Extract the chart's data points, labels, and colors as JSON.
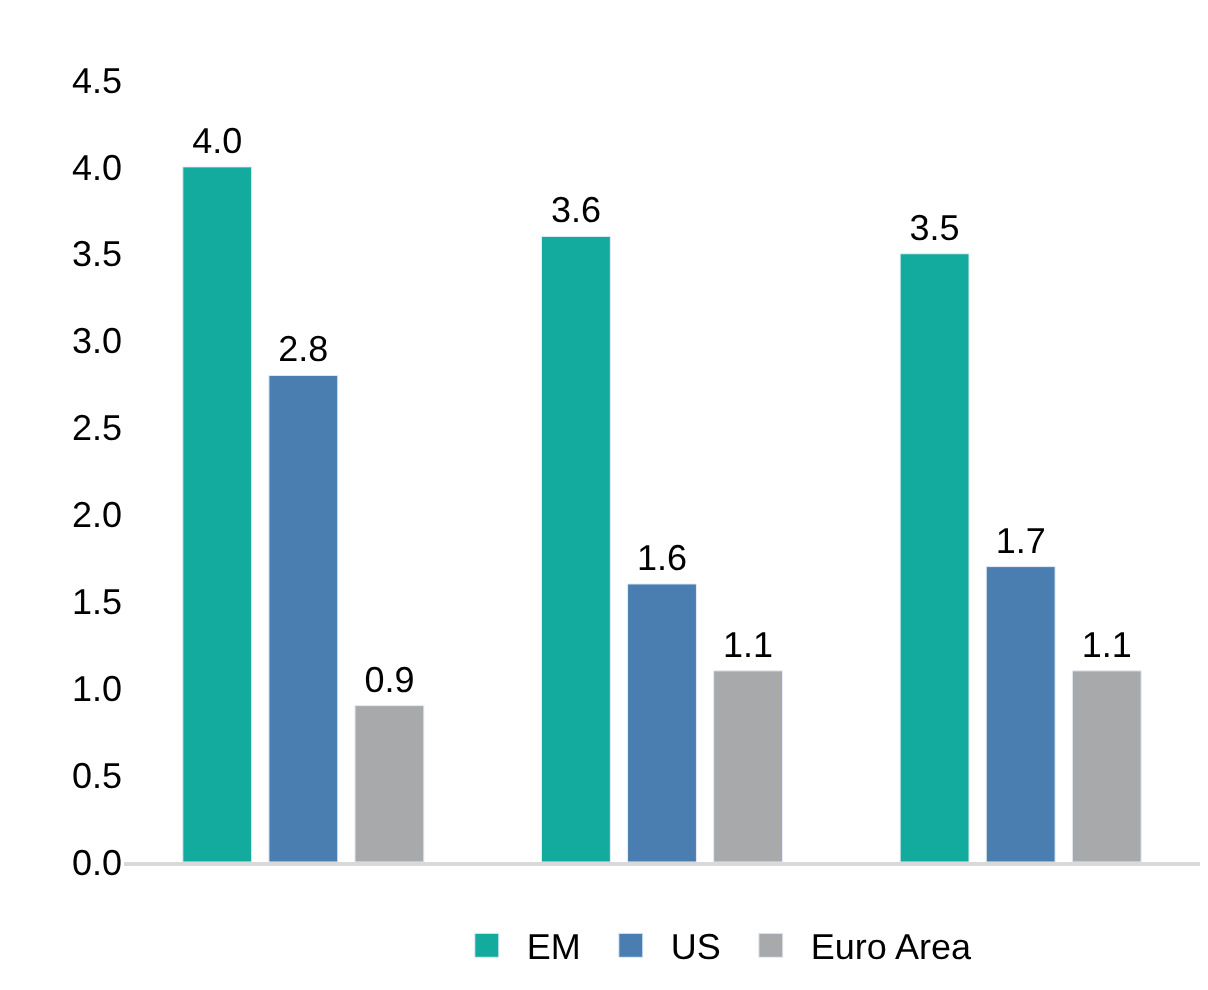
{
  "chart_data": {
    "type": "bar",
    "categories": [
      null,
      null,
      null
    ],
    "series": [
      {
        "name": "EM",
        "color": "#13ab9d",
        "values": [
          4.0,
          3.6,
          3.5
        ],
        "value_labels": [
          "4.0",
          "3.6",
          "3.5"
        ]
      },
      {
        "name": "US",
        "color": "#4a7eb0",
        "values": [
          2.8,
          1.6,
          1.7
        ],
        "value_labels": [
          "2.8",
          "1.6",
          "1.7"
        ]
      },
      {
        "name": "Euro Area",
        "color": "#a8a9ab",
        "values": [
          0.9,
          1.1,
          1.1
        ],
        "value_labels": [
          "0.9",
          "1.1",
          "1.1"
        ]
      }
    ],
    "ylim": [
      0,
      4.5
    ],
    "yticks": [
      {
        "value": 0,
        "label": "0.0"
      },
      0.5,
      {
        "value": 1,
        "label": "1.0"
      },
      1.5,
      {
        "value": 2,
        "label": "2.0"
      },
      2.5,
      {
        "value": 3,
        "label": "3.0"
      },
      3.5,
      {
        "value": 4,
        "label": "4.0"
      },
      4.5
    ],
    "legend": "bottom"
  }
}
